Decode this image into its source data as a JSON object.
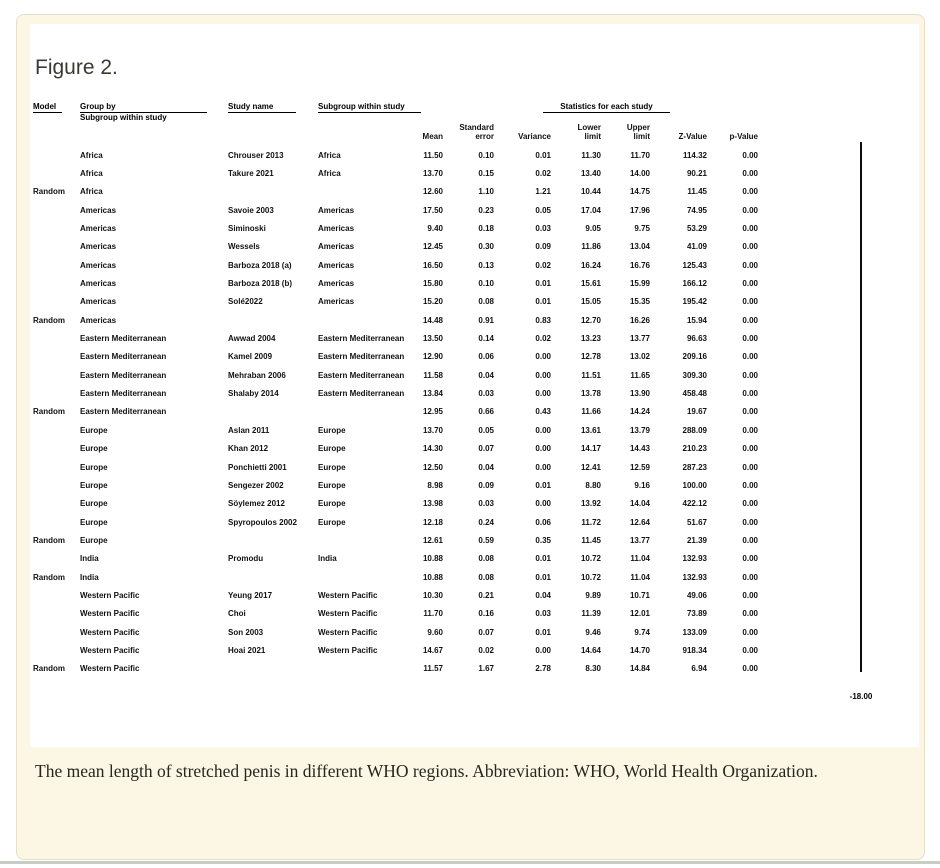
{
  "figure": {
    "title": "Figure 2."
  },
  "colors": {
    "card_bg": "#fbf7e4",
    "card_border": "#e6dfc6",
    "divider": "#c8cec4",
    "axis_line": "#0d0d0d"
  },
  "table": {
    "headers": {
      "model": "Model",
      "group_by_line1": "Group by",
      "group_by_line2": "Subgroup within study",
      "study_name": "Study name",
      "subgroup_within_study": "Subgroup within study",
      "stats_title": "Statistics for each study",
      "stat_cols": [
        "Mean",
        "Standard\nerror",
        "Variance",
        "Lower\nlimit",
        "Upper\nlimit",
        "Z-Value",
        "p-Value"
      ]
    },
    "rows": [
      [
        "",
        "Africa",
        "Chrouser 2013",
        "Africa",
        "11.50",
        "0.10",
        "0.01",
        "11.30",
        "11.70",
        "114.32",
        "0.00"
      ],
      [
        "",
        "Africa",
        "Takure 2021",
        "Africa",
        "13.70",
        "0.15",
        "0.02",
        "13.40",
        "14.00",
        "90.21",
        "0.00"
      ],
      [
        "Random",
        "Africa",
        "",
        "",
        "12.60",
        "1.10",
        "1.21",
        "10.44",
        "14.75",
        "11.45",
        "0.00"
      ],
      [
        "",
        "Americas",
        "Savoie 2003",
        "Americas",
        "17.50",
        "0.23",
        "0.05",
        "17.04",
        "17.96",
        "74.95",
        "0.00"
      ],
      [
        "",
        "Americas",
        "Siminoski",
        "Americas",
        "9.40",
        "0.18",
        "0.03",
        "9.05",
        "9.75",
        "53.29",
        "0.00"
      ],
      [
        "",
        "Americas",
        "Wessels",
        "Americas",
        "12.45",
        "0.30",
        "0.09",
        "11.86",
        "13.04",
        "41.09",
        "0.00"
      ],
      [
        "",
        "Americas",
        "Barboza 2018 (a)",
        "Americas",
        "16.50",
        "0.13",
        "0.02",
        "16.24",
        "16.76",
        "125.43",
        "0.00"
      ],
      [
        "",
        "Americas",
        "Barboza 2018 (b)",
        "Americas",
        "15.80",
        "0.10",
        "0.01",
        "15.61",
        "15.99",
        "166.12",
        "0.00"
      ],
      [
        "",
        "Americas",
        "Solé2022",
        "Americas",
        "15.20",
        "0.08",
        "0.01",
        "15.05",
        "15.35",
        "195.42",
        "0.00"
      ],
      [
        "Random",
        "Americas",
        "",
        "",
        "14.48",
        "0.91",
        "0.83",
        "12.70",
        "16.26",
        "15.94",
        "0.00"
      ],
      [
        "",
        "Eastern Mediterranean",
        "Awwad 2004",
        "Eastern Mediterranean",
        "13.50",
        "0.14",
        "0.02",
        "13.23",
        "13.77",
        "96.63",
        "0.00"
      ],
      [
        "",
        "Eastern Mediterranean",
        "Kamel 2009",
        "Eastern Mediterranean",
        "12.90",
        "0.06",
        "0.00",
        "12.78",
        "13.02",
        "209.16",
        "0.00"
      ],
      [
        "",
        "Eastern Mediterranean",
        "Mehraban 2006",
        "Eastern Mediterranean",
        "11.58",
        "0.04",
        "0.00",
        "11.51",
        "11.65",
        "309.30",
        "0.00"
      ],
      [
        "",
        "Eastern Mediterranean",
        "Shalaby 2014",
        "Eastern Mediterranean",
        "13.84",
        "0.03",
        "0.00",
        "13.78",
        "13.90",
        "458.48",
        "0.00"
      ],
      [
        "Random",
        "Eastern Mediterranean",
        "",
        "",
        "12.95",
        "0.66",
        "0.43",
        "11.66",
        "14.24",
        "19.67",
        "0.00"
      ],
      [
        "",
        "Europe",
        "Aslan 2011",
        "Europe",
        "13.70",
        "0.05",
        "0.00",
        "13.61",
        "13.79",
        "288.09",
        "0.00"
      ],
      [
        "",
        "Europe",
        "Khan 2012",
        "Europe",
        "14.30",
        "0.07",
        "0.00",
        "14.17",
        "14.43",
        "210.23",
        "0.00"
      ],
      [
        "",
        "Europe",
        "Ponchietti 2001",
        "Europe",
        "12.50",
        "0.04",
        "0.00",
        "12.41",
        "12.59",
        "287.23",
        "0.00"
      ],
      [
        "",
        "Europe",
        "Sengezer 2002",
        "Europe",
        "8.98",
        "0.09",
        "0.01",
        "8.80",
        "9.16",
        "100.00",
        "0.00"
      ],
      [
        "",
        "Europe",
        "Söylemez 2012",
        "Europe",
        "13.98",
        "0.03",
        "0.00",
        "13.92",
        "14.04",
        "422.12",
        "0.00"
      ],
      [
        "",
        "Europe",
        "Spyropoulos 2002",
        "Europe",
        "12.18",
        "0.24",
        "0.06",
        "11.72",
        "12.64",
        "51.67",
        "0.00"
      ],
      [
        "Random",
        "Europe",
        "",
        "",
        "12.61",
        "0.59",
        "0.35",
        "11.45",
        "13.77",
        "21.39",
        "0.00"
      ],
      [
        "",
        "India",
        "Promodu",
        "India",
        "10.88",
        "0.08",
        "0.01",
        "10.72",
        "11.04",
        "132.93",
        "0.00"
      ],
      [
        "Random",
        "India",
        "",
        "",
        "10.88",
        "0.08",
        "0.01",
        "10.72",
        "11.04",
        "132.93",
        "0.00"
      ],
      [
        "",
        "Western Pacific",
        "Yeung 2017",
        "Western Pacific",
        "10.30",
        "0.21",
        "0.04",
        "9.89",
        "10.71",
        "49.06",
        "0.00"
      ],
      [
        "",
        "Western Pacific",
        "Choi",
        "Western Pacific",
        "11.70",
        "0.16",
        "0.03",
        "11.39",
        "12.01",
        "73.89",
        "0.00"
      ],
      [
        "",
        "Western Pacific",
        "Son 2003",
        "Western Pacific",
        "9.60",
        "0.07",
        "0.01",
        "9.46",
        "9.74",
        "133.09",
        "0.00"
      ],
      [
        "",
        "Western Pacific",
        "Hoai 2021",
        "Western Pacific",
        "14.67",
        "0.02",
        "0.00",
        "14.64",
        "14.70",
        "918.34",
        "0.00"
      ],
      [
        "Random",
        "Western Pacific",
        "",
        "",
        "11.57",
        "1.67",
        "2.78",
        "8.30",
        "14.84",
        "6.94",
        "0.00"
      ]
    ]
  },
  "forest": {
    "axis_label": "-18.00"
  },
  "caption": "The mean length of stretched penis in different WHO regions. Abbreviation: WHO, World Health Organization."
}
